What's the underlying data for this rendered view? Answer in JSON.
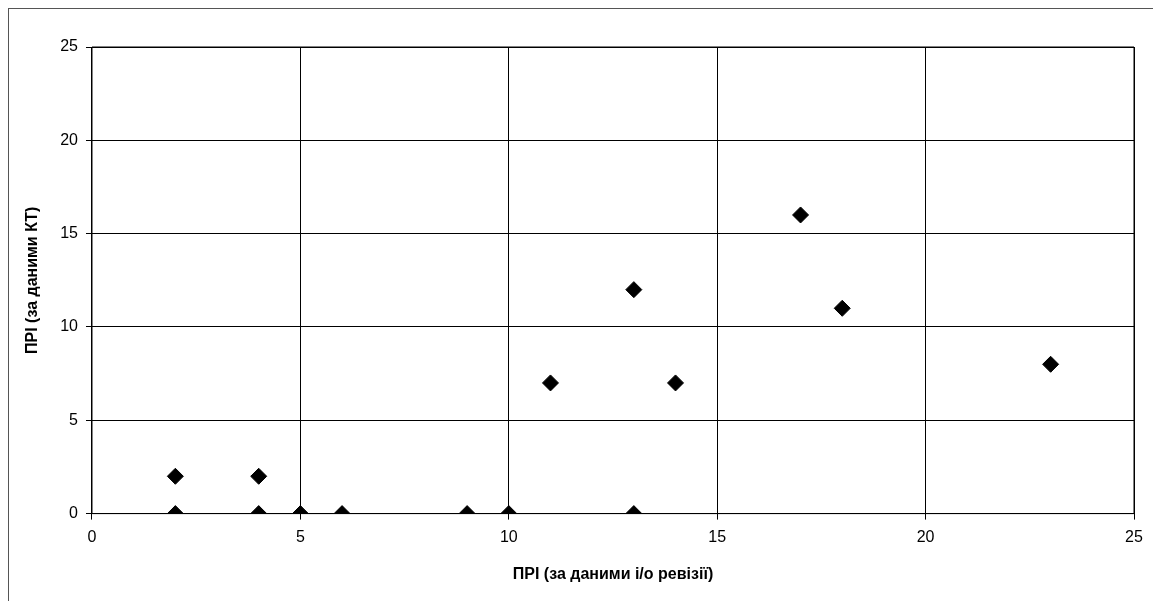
{
  "chart_data": {
    "type": "scatter",
    "xlabel": "ПРІ (за даними і/о ревізії)",
    "ylabel": "ПРІ (за даними КТ)",
    "x": [
      2,
      2,
      4,
      4,
      5,
      6,
      9,
      10,
      11,
      13,
      13,
      14,
      17,
      18,
      23
    ],
    "series": [
      {
        "color": "#000000",
        "values": [
          2,
          0,
          2,
          0,
          0,
          0,
          0,
          0,
          7,
          12,
          0,
          7,
          16,
          11,
          8
        ]
      }
    ],
    "xlim": [
      0,
      25
    ],
    "ylim": [
      0,
      25
    ],
    "xticks": [
      0,
      5,
      10,
      15,
      20,
      25
    ],
    "yticks": [
      0,
      5,
      10,
      15,
      20,
      25
    ],
    "grid": true,
    "legend": false,
    "marker": "diamond"
  }
}
